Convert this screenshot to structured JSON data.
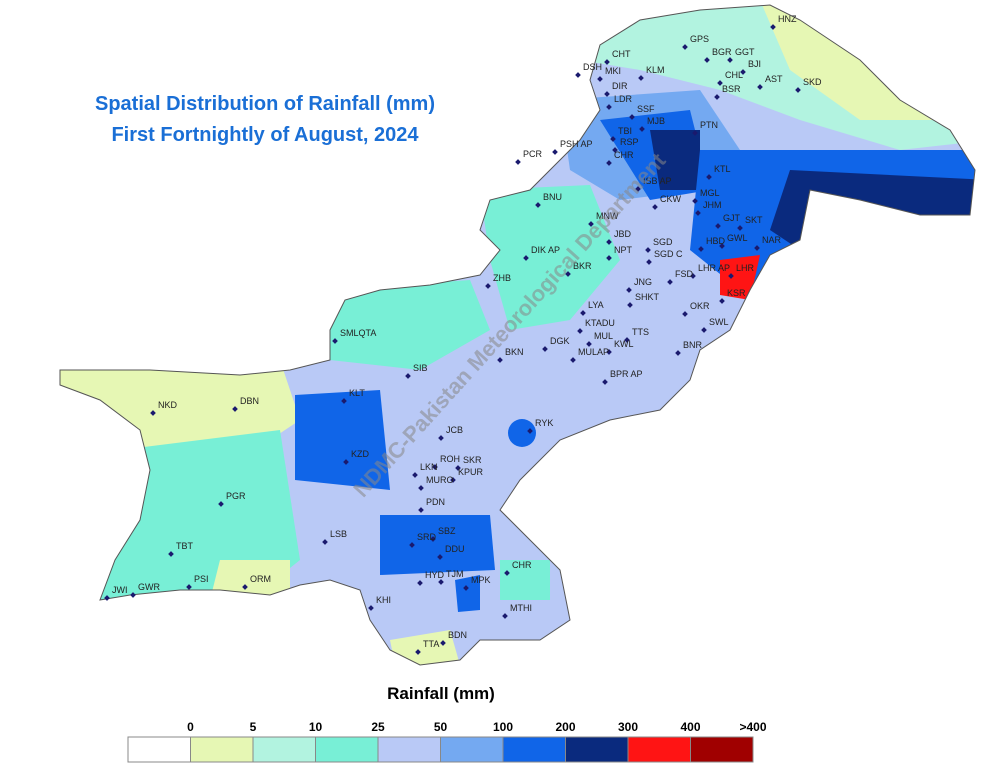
{
  "title_lines": [
    "Spatial Distribution of Rainfall (mm)",
    "First Fortnightly of August, 2024"
  ],
  "watermark": "NDMC-Pakistan Meteorological Department",
  "legend": {
    "title": "Rainfall (mm)",
    "labels": [
      "0",
      "5",
      "10",
      "25",
      "50",
      "100",
      "200",
      "300",
      "400",
      ">400"
    ],
    "colors": [
      "#ffffff",
      "#e6f7b4",
      "#b2f3e0",
      "#78efd6",
      "#b9c9f6",
      "#74a9f1",
      "#1065e8",
      "#0a2a7e",
      "#ff1414",
      "#a00000"
    ]
  },
  "stations": [
    "HNZ",
    "GPS",
    "BGR",
    "GGT",
    "BJI",
    "CHT",
    "DSH",
    "MKI",
    "KLM",
    "CHL",
    "AST",
    "SKD",
    "BSR",
    "DIR",
    "LDR",
    "SSF",
    "MJB",
    "PTN",
    "TBI",
    "PSH AP",
    "RSP",
    "PCR",
    "CHR",
    "KTL",
    "ISB AP",
    "CKW",
    "BNU",
    "MGL",
    "JHM",
    "MNW",
    "GJT",
    "SKT",
    "JBD",
    "GWL",
    "NAR",
    "HBD",
    "SGD",
    "DIK AP",
    "NPT",
    "SGD C",
    "BKR",
    "LHR AP",
    "LHR",
    "FSD",
    "ZHB",
    "JNG",
    "SHKT",
    "KSR",
    "LYA",
    "OKR",
    "SMLQTA",
    "KTADU",
    "TTS",
    "SWL",
    "DGK",
    "MUL",
    "KWL",
    "BNR",
    "MULAP",
    "SIB",
    "BKN",
    "BPR AP",
    "KLT",
    "NKD",
    "DBN",
    "RYK",
    "JCB",
    "KZD",
    "ROH",
    "SKR",
    "LKN",
    "KPUR",
    "MURO",
    "PDN",
    "PGR",
    "SBZ",
    "LSB",
    "SRD",
    "DDU",
    "TBT",
    "CHR",
    "HYD",
    "TJM",
    "MPK",
    "ORM",
    "PSI",
    "GWR",
    "JWI",
    "KHI",
    "MTHI",
    "BDN",
    "TTA"
  ]
}
